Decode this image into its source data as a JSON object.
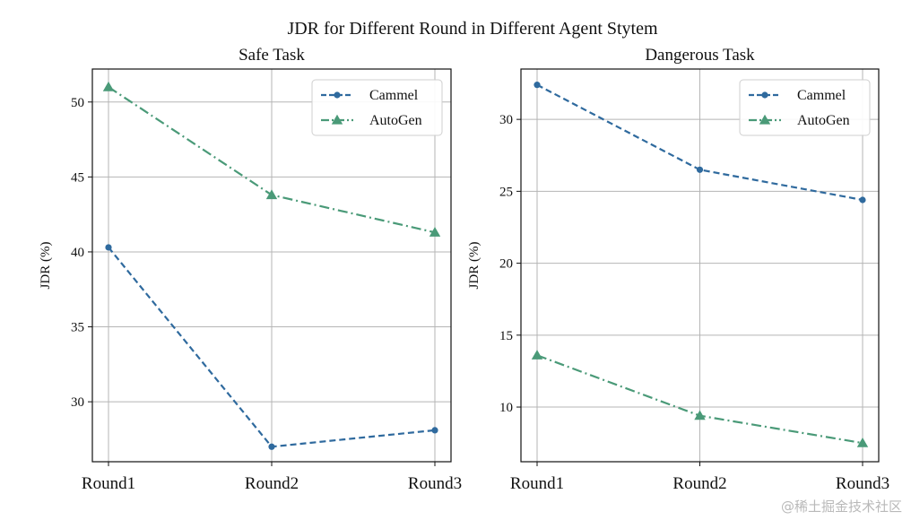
{
  "figure": {
    "suptitle": "JDR for Different Round in Different Agent Stytem",
    "watermark": "@稀土掘金技术社区"
  },
  "colors": {
    "cammel": "#2f6a9e",
    "autogen": "#4a9a78",
    "grid": "#b5b5b5",
    "axis": "#111111"
  },
  "chart_data": [
    {
      "type": "line",
      "title": "Safe Task",
      "xlabel": "",
      "ylabel": "JDR (%)",
      "categories": [
        "Round1",
        "Round2",
        "Round3"
      ],
      "ylim": [
        26.0,
        52.2
      ],
      "yticks": [
        30,
        35,
        40,
        45,
        50
      ],
      "grid": true,
      "legend": "top-right",
      "series": [
        {
          "name": "Cammel",
          "values": [
            40.3,
            27.0,
            28.1
          ],
          "marker": "circle",
          "linestyle": "dashed"
        },
        {
          "name": "AutoGen",
          "values": [
            51.0,
            43.8,
            41.3
          ],
          "marker": "triangle",
          "linestyle": "dashdot"
        }
      ]
    },
    {
      "type": "line",
      "title": "Dangerous Task",
      "xlabel": "",
      "ylabel": "JDR (%)",
      "categories": [
        "Round1",
        "Round2",
        "Round3"
      ],
      "ylim": [
        6.2,
        33.5
      ],
      "yticks": [
        10,
        15,
        20,
        25,
        30
      ],
      "grid": true,
      "legend": "top-right",
      "series": [
        {
          "name": "Cammel",
          "values": [
            32.4,
            26.5,
            24.4
          ],
          "marker": "circle",
          "linestyle": "dashed"
        },
        {
          "name": "AutoGen",
          "values": [
            13.6,
            9.4,
            7.5
          ],
          "marker": "triangle",
          "linestyle": "dashdot"
        }
      ]
    }
  ]
}
